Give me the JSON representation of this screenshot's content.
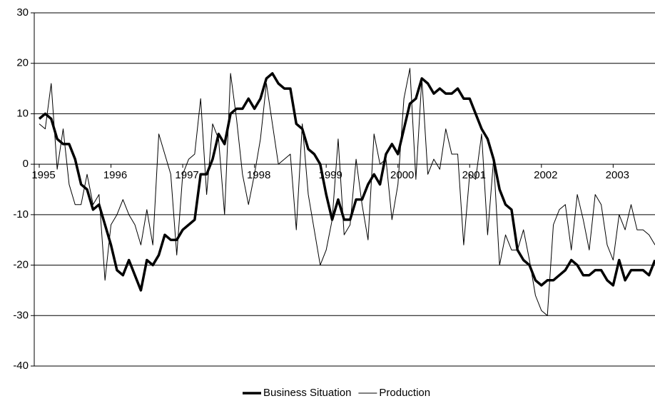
{
  "chart_data": {
    "type": "line",
    "categories": [
      "1995",
      null,
      null,
      null,
      null,
      null,
      null,
      null,
      null,
      null,
      null,
      null,
      "1996",
      null,
      null,
      null,
      null,
      null,
      null,
      null,
      null,
      null,
      null,
      null,
      "1997",
      null,
      null,
      null,
      null,
      null,
      null,
      null,
      null,
      null,
      null,
      null,
      "1998",
      null,
      null,
      null,
      null,
      null,
      null,
      null,
      null,
      null,
      null,
      null,
      "1999",
      null,
      null,
      null,
      null,
      null,
      null,
      null,
      null,
      null,
      null,
      null,
      "2000",
      null,
      null,
      null,
      null,
      null,
      null,
      null,
      null,
      null,
      null,
      null,
      "2001",
      null,
      null,
      null,
      null,
      null,
      null,
      null,
      null,
      null,
      null,
      null,
      "2002",
      null,
      null,
      null,
      null,
      null,
      null,
      null,
      null,
      null,
      null,
      null,
      "2003",
      null,
      null,
      null,
      null,
      null,
      null,
      null
    ],
    "series": [
      {
        "name": "Business Situation",
        "color": "#000000",
        "linewidth": 3.5,
        "values": [
          9,
          10,
          9,
          5,
          4,
          4,
          1,
          -4,
          -5,
          -9,
          -8,
          -12,
          -16,
          -21,
          -22,
          -19,
          -22,
          -25,
          -19,
          -20,
          -18,
          -14,
          -15,
          -15,
          -13,
          -12,
          -11,
          -2,
          -2,
          1,
          6,
          4,
          10,
          11,
          11,
          13,
          11,
          13,
          17,
          18,
          16,
          15,
          15,
          8,
          7,
          3,
          2,
          0,
          -6,
          -11,
          -7,
          -11,
          -11,
          -7,
          -7,
          -4,
          -2,
          -4,
          2,
          4,
          2,
          7,
          12,
          13,
          17,
          16,
          14,
          15,
          14,
          14,
          15,
          13,
          13,
          10,
          7,
          5,
          1,
          -5,
          -8,
          -9,
          -17,
          -19,
          -20,
          -23,
          -24,
          -23,
          -23,
          -22,
          -21,
          -19,
          -20,
          -22,
          -22,
          -21,
          -21,
          -23,
          -24,
          -19,
          -23,
          -21,
          -21,
          -21,
          -22,
          -19
        ]
      },
      {
        "name": "Production",
        "color": "#000000",
        "linewidth": 1,
        "values": [
          8,
          7,
          16,
          -1,
          7,
          -4,
          -8,
          -8,
          -2,
          -8,
          -6,
          -23,
          -12,
          -10,
          -7,
          -10,
          -12,
          -16,
          -9,
          -16,
          6,
          2,
          -2,
          -18,
          -2,
          1,
          2,
          13,
          -6,
          8,
          5,
          -10,
          18,
          9,
          -2,
          -8,
          -2,
          5,
          16,
          8,
          0,
          1,
          2,
          -13,
          8,
          -6,
          -13,
          -20,
          -17,
          -11,
          5,
          -14,
          -12,
          1,
          -8,
          -15,
          6,
          0,
          1,
          -11,
          -4,
          13,
          19,
          -3,
          17,
          -2,
          1,
          -1,
          7,
          2,
          2,
          -16,
          -2,
          -3,
          6,
          -14,
          1,
          -20,
          -14,
          -17,
          -17,
          -13,
          -19,
          -26,
          -29,
          -30,
          -12,
          -9,
          -8,
          -17,
          -6,
          -11,
          -17,
          -6,
          -8,
          -16,
          -19,
          -10,
          -13,
          -8,
          -13,
          -13,
          -14,
          -16
        ]
      }
    ],
    "ylim": [
      -40,
      30
    ],
    "yticks": [
      -40,
      -30,
      -20,
      -10,
      0,
      10,
      20,
      30
    ],
    "grid": true,
    "legend": "bottom"
  }
}
